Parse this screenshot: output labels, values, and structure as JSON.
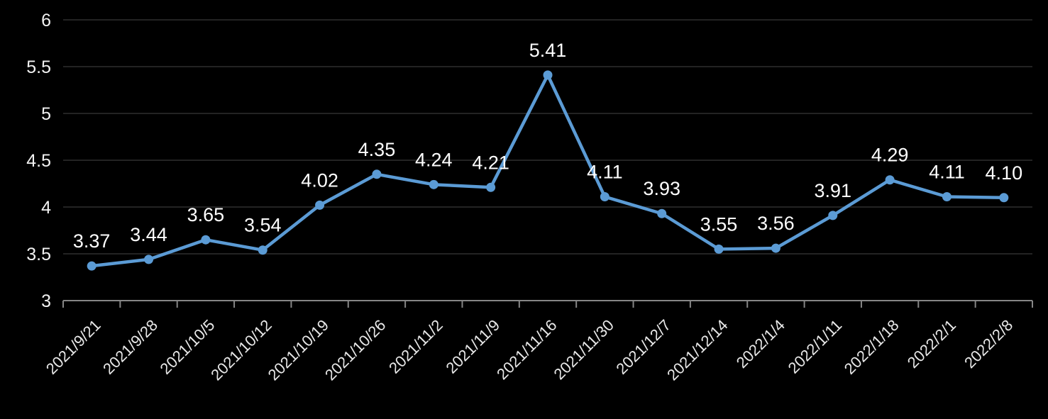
{
  "chart_data": {
    "type": "line",
    "title": "",
    "xlabel": "",
    "ylabel": "",
    "categories": [
      "2021/9/21",
      "2021/9/28",
      "2021/10/5",
      "2021/10/12",
      "2021/10/19",
      "2021/10/26",
      "2021/11/2",
      "2021/11/9",
      "2021/11/16",
      "2021/11/30",
      "2021/12/7",
      "2021/12/14",
      "2022/1/4",
      "2022/1/11",
      "2022/1/18",
      "2022/2/1",
      "2022/2/8"
    ],
    "values": [
      3.37,
      3.44,
      3.65,
      3.54,
      4.02,
      4.35,
      4.24,
      4.21,
      5.41,
      4.11,
      3.93,
      3.55,
      3.56,
      3.91,
      4.29,
      4.11,
      4.1
    ],
    "point_labels": [
      "3.37",
      "3.44",
      "3.65",
      "3.54",
      "4.02",
      "4.35",
      "4.24",
      "4.21",
      "5.41",
      "4.11",
      "3.93",
      "3.55",
      "3.56",
      "3.91",
      "4.29",
      "4.11",
      "4.10"
    ],
    "ylim": [
      3,
      6
    ],
    "ytick_labels": [
      "3",
      "3.5",
      "4",
      "4.5",
      "5",
      "5.5",
      "6"
    ],
    "yticks": [
      3,
      3.5,
      4,
      4.5,
      5,
      5.5,
      6
    ],
    "grid": true,
    "legend_position": "none",
    "x_label_rotation_deg": -45,
    "colors": {
      "background": "#000000",
      "line": "#5B9BD5",
      "marker": "#5B9BD5",
      "gridline": "#232323",
      "axis": "#868686",
      "data_label": "#FFFFFF",
      "y_tick_label": "#F2F2F2",
      "x_tick_label": "#E8E8E8"
    }
  }
}
